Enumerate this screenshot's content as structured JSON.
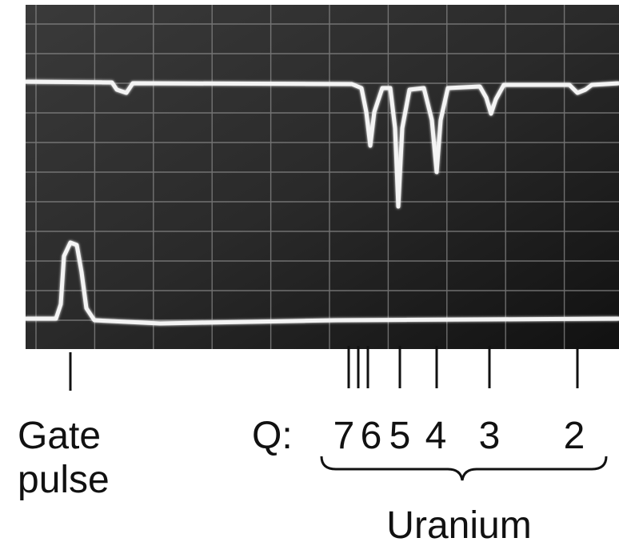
{
  "labels": {
    "gate": [
      "Gate",
      "pulse"
    ],
    "q_prefix": "Q:",
    "q_values": [
      7,
      6,
      5,
      4,
      3,
      2
    ],
    "group": "Uranium"
  }
}
